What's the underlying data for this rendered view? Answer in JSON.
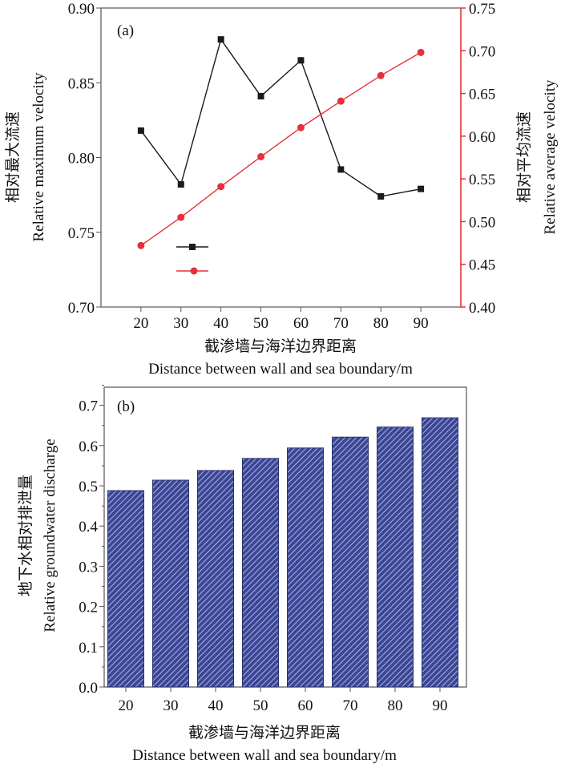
{
  "chart_data": [
    {
      "type": "line",
      "panel_label": "(a)",
      "x": [
        20,
        30,
        40,
        50,
        60,
        70,
        80,
        90
      ],
      "xlim": [
        10,
        100
      ],
      "x_ticks": [
        "20",
        "30",
        "40",
        "50",
        "60",
        "70",
        "80",
        "90"
      ],
      "xlabel_cn": "截渗墙与海洋边界距离",
      "xlabel": "Distance between wall and sea boundary/m",
      "ylabel_left_cn": "相对最大流速",
      "ylabel_left": "Relative maximum velocity",
      "ylim_left": [
        0.7,
        0.9
      ],
      "y_ticks_left": [
        "0.70",
        "0.75",
        "0.80",
        "0.85",
        "0.90"
      ],
      "ylabel_right_cn": "相对平均流速",
      "ylabel_right": "Relative average velocity",
      "ylim_right": [
        0.4,
        0.75
      ],
      "y_ticks_right": [
        "0.40",
        "0.45",
        "0.50",
        "0.55",
        "0.60",
        "0.65",
        "0.70",
        "0.75"
      ],
      "legend": "bottom-left, markers only",
      "series": [
        {
          "axis": "left",
          "marker": "square",
          "color": "#1a1a1a",
          "values": [
            0.818,
            0.782,
            0.879,
            0.841,
            0.865,
            0.792,
            0.774,
            0.779
          ]
        },
        {
          "axis": "right",
          "marker": "circle",
          "color": "#e8303a",
          "values": [
            0.472,
            0.505,
            0.541,
            0.576,
            0.61,
            0.641,
            0.671,
            0.698
          ]
        }
      ]
    },
    {
      "type": "bar",
      "panel_label": "(b)",
      "categories": [
        "20",
        "30",
        "40",
        "50",
        "60",
        "70",
        "80",
        "90"
      ],
      "values": [
        0.488,
        0.514,
        0.538,
        0.568,
        0.594,
        0.621,
        0.646,
        0.669
      ],
      "ylim": [
        0.0,
        0.75
      ],
      "y_ticks": [
        "0.0",
        "0.1",
        "0.2",
        "0.3",
        "0.4",
        "0.5",
        "0.6",
        "0.7"
      ],
      "xlabel_cn": "截渗墙与海洋边界距离",
      "xlabel": "Distance between wall and sea boundary/m",
      "ylabel_cn": "地下水相对排泄量",
      "ylabel": "Relative groundwater discharge",
      "bar_color": "#3b4796",
      "hatch": "diagonal white lines"
    }
  ]
}
